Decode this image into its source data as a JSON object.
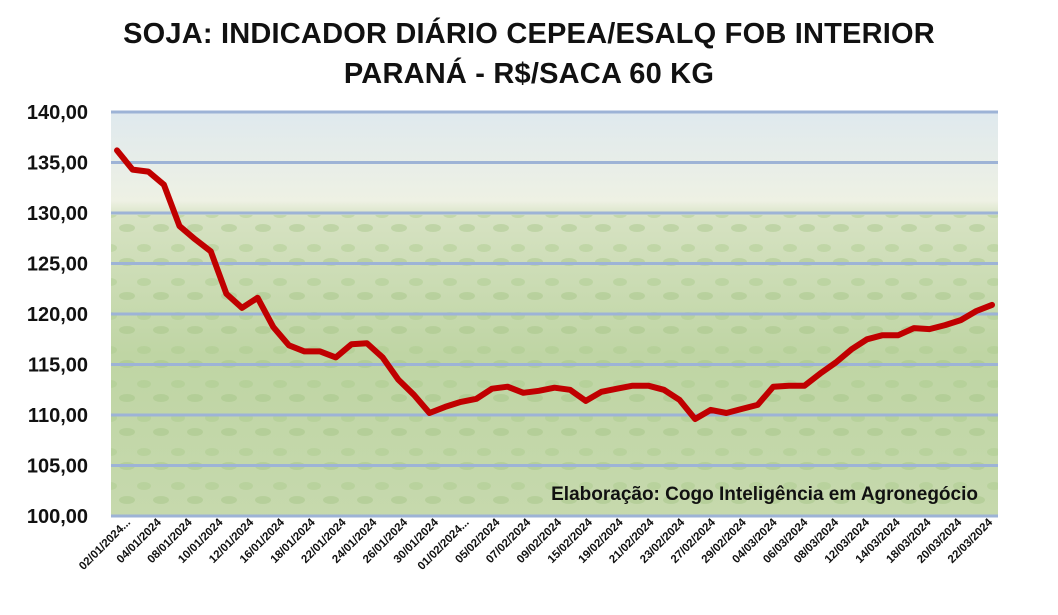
{
  "chart_data": {
    "type": "line",
    "title_line1": "SOJA: INDICADOR DIÁRIO CEPEA/ESALQ FOB INTERIOR",
    "title_line2": "PARANÁ - R$/SACA 60 KG",
    "annotation": "Elaboração: Cogo Inteligência em Agronegócio",
    "ylim": [
      100,
      140
    ],
    "yticks": [
      "100,00",
      "105,00",
      "110,00",
      "115,00",
      "120,00",
      "125,00",
      "130,00",
      "135,00",
      "140,00"
    ],
    "grid": true,
    "line_color": "#c00000",
    "x_labels": [
      "02/01/2024...",
      "04/01/2024",
      "08/01/2024",
      "10/01/2024",
      "12/01/2024",
      "16/01/2024",
      "18/01/2024",
      "22/01/2024",
      "24/01/2024",
      "26/01/2024",
      "30/01/2024",
      "01/02/2024...",
      "05/02/2024",
      "07/02/2024",
      "09/02/2024",
      "15/02/2024",
      "19/02/2024",
      "21/02/2024",
      "23/02/2024",
      "27/02/2024",
      "29/02/2024",
      "04/03/2024",
      "06/03/2024",
      "08/03/2024",
      "12/03/2024",
      "14/03/2024",
      "18/03/2024",
      "20/03/2024",
      "22/03/2024"
    ],
    "values": [
      136.2,
      134.3,
      134.1,
      132.8,
      128.7,
      127.4,
      126.2,
      122.0,
      120.6,
      121.6,
      118.7,
      116.9,
      116.3,
      116.3,
      115.7,
      117.0,
      117.1,
      115.7,
      113.5,
      112.0,
      110.2,
      110.8,
      111.3,
      111.6,
      112.6,
      112.8,
      112.2,
      112.4,
      112.7,
      112.5,
      111.4,
      112.3,
      112.6,
      112.9,
      112.9,
      112.5,
      111.5,
      109.6,
      110.5,
      110.2,
      110.6,
      111.0,
      112.8,
      112.9,
      112.9,
      114.1,
      115.2,
      116.5,
      117.5,
      117.9,
      117.9,
      118.6,
      118.5,
      118.9,
      119.4,
      120.3,
      120.9
    ]
  }
}
